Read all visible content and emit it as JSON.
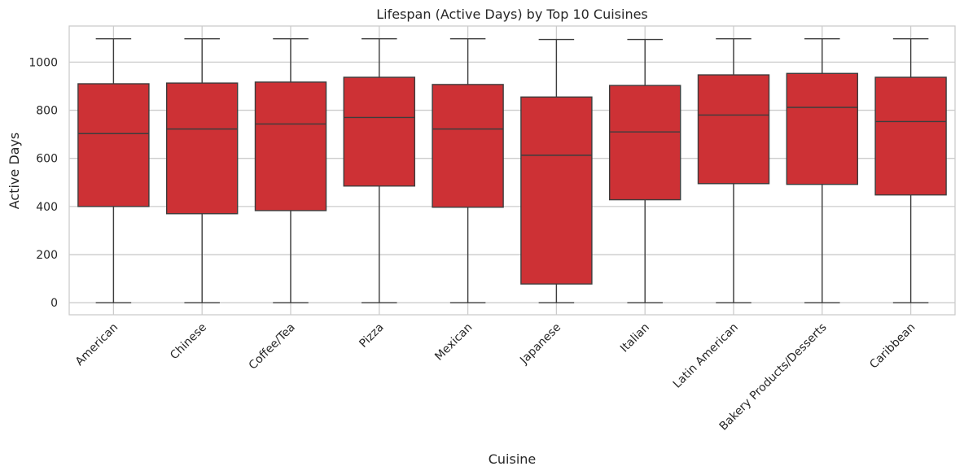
{
  "chart_data": {
    "type": "box",
    "title": "Lifespan (Active Days) by Top 10 Cuisines",
    "xlabel": "Cuisine",
    "ylabel": "Active Days",
    "ylim": [
      -50,
      1150
    ],
    "yticks": [
      0,
      200,
      400,
      600,
      800,
      1000
    ],
    "grid": true,
    "box_color": "#cd3135",
    "line_color": "#3d3d3d",
    "grid_color": "#cccccc",
    "categories": [
      "American",
      "Chinese",
      "Coffee/Tea",
      "Pizza",
      "Mexican",
      "Japanese",
      "Italian",
      "Latin American",
      "Bakery Products/Desserts",
      "Caribbean"
    ],
    "boxes": [
      {
        "min": 0,
        "q1": 400,
        "median": 703,
        "q3": 910,
        "max": 1097
      },
      {
        "min": 0,
        "q1": 370,
        "median": 722,
        "q3": 913,
        "max": 1097
      },
      {
        "min": 0,
        "q1": 383,
        "median": 743,
        "q3": 917,
        "max": 1097
      },
      {
        "min": 0,
        "q1": 485,
        "median": 770,
        "q3": 937,
        "max": 1097
      },
      {
        "min": 0,
        "q1": 397,
        "median": 722,
        "q3": 907,
        "max": 1097
      },
      {
        "min": 0,
        "q1": 78,
        "median": 613,
        "q3": 855,
        "max": 1094
      },
      {
        "min": 0,
        "q1": 428,
        "median": 710,
        "q3": 903,
        "max": 1094
      },
      {
        "min": 0,
        "q1": 495,
        "median": 780,
        "q3": 947,
        "max": 1097
      },
      {
        "min": 0,
        "q1": 492,
        "median": 812,
        "q3": 953,
        "max": 1097
      },
      {
        "min": 0,
        "q1": 448,
        "median": 753,
        "q3": 937,
        "max": 1097
      }
    ]
  }
}
